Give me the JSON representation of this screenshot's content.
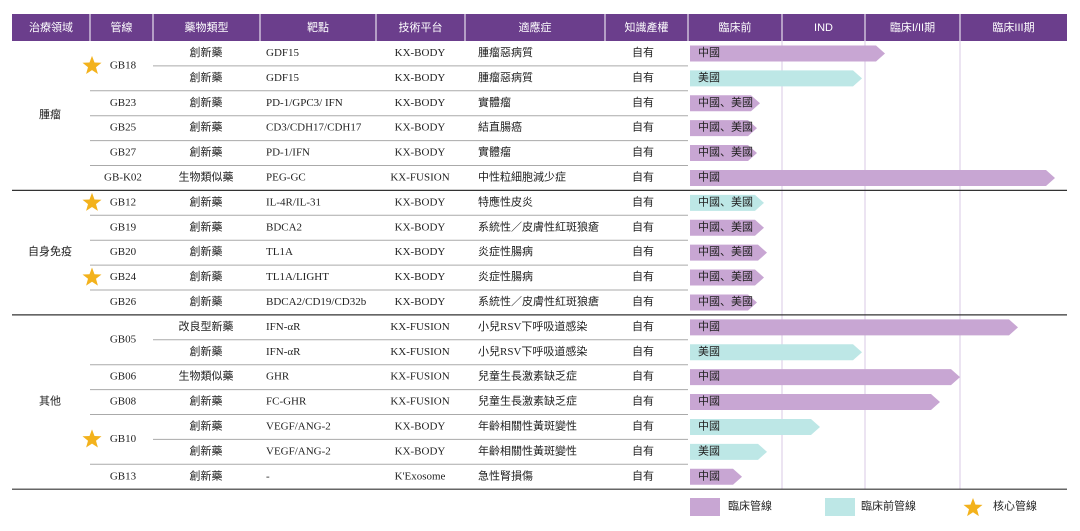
{
  "header": [
    "治療領域",
    "管線",
    "藥物類型",
    "靶點",
    "技術平台",
    "適應症",
    "知識產權",
    "臨床前",
    "IND",
    "臨床I/II期",
    "臨床III期"
  ],
  "groups": [
    {
      "name": "腫瘤",
      "pipelines": [
        {
          "name": "GB18",
          "rows": [
            [
              "創新藥",
              "GDF15",
              "KX-BODY",
              "腫瘤惡病質",
              "自有",
              "中國"
            ],
            [
              "創新藥",
              "GDF15",
              "KX-BODY",
              "腫瘤惡病質",
              "自有",
              "美國"
            ]
          ]
        },
        {
          "name": "GB23",
          "rows": [
            [
              "創新藥",
              "PD-1/GPC3/ IFN",
              "KX-BODY",
              "實體瘤",
              "自有",
              "中國、美國"
            ]
          ]
        },
        {
          "name": "GB25",
          "rows": [
            [
              "創新藥",
              "CD3/CDH17/CDH17",
              "KX-BODY",
              "結直腸癌",
              "自有",
              "中國、美國"
            ]
          ]
        },
        {
          "name": "GB27",
          "rows": [
            [
              "創新藥",
              "PD-1/IFN",
              "KX-BODY",
              "實體瘤",
              "自有",
              "中國、美國"
            ]
          ]
        },
        {
          "name": "GB-K02",
          "rows": [
            [
              "生物類似藥",
              "PEG-GC",
              "KX-FUSION",
              "中性粒細胞減少症",
              "自有",
              "中國"
            ]
          ]
        }
      ]
    },
    {
      "name": "自身免疫",
      "pipelines": [
        {
          "name": "GB12",
          "rows": [
            [
              "創新藥",
              "IL-4R/IL-31",
              "KX-BODY",
              "特應性皮炎",
              "自有",
              "中國、美國"
            ]
          ]
        },
        {
          "name": "GB19",
          "rows": [
            [
              "創新藥",
              "BDCA2",
              "KX-BODY",
              "系統性／皮膚性紅斑狼瘡",
              "自有",
              "中國、美國"
            ]
          ]
        },
        {
          "name": "GB20",
          "rows": [
            [
              "創新藥",
              "TL1A",
              "KX-BODY",
              "炎症性腸病",
              "自有",
              "中國、美國"
            ]
          ]
        },
        {
          "name": "GB24",
          "rows": [
            [
              "創新藥",
              "TL1A/LIGHT",
              "KX-BODY",
              "炎症性腸病",
              "自有",
              "中國、美國"
            ]
          ]
        },
        {
          "name": "GB26",
          "rows": [
            [
              "創新藥",
              "BDCA2/CD19/CD32b",
              "KX-BODY",
              "系統性／皮膚性紅斑狼瘡",
              "自有",
              "中國、美國"
            ]
          ]
        }
      ]
    },
    {
      "name": "其他",
      "pipelines": [
        {
          "name": "GB05",
          "rows": [
            [
              "改良型新藥",
              "IFN-αR",
              "KX-FUSION",
              "小兒RSV下呼吸道感染",
              "自有",
              "中國"
            ],
            [
              "創新藥",
              "IFN-αR",
              "KX-FUSION",
              "小兒RSV下呼吸道感染",
              "自有",
              "美國"
            ]
          ]
        },
        {
          "name": "GB06",
          "rows": [
            [
              "生物類似藥",
              "GHR",
              "KX-FUSION",
              "兒童生長激素缺乏症",
              "自有",
              "中國"
            ]
          ]
        },
        {
          "name": "GB08",
          "rows": [
            [
              "創新藥",
              "FC-GHR",
              "KX-FUSION",
              "兒童生長激素缺乏症",
              "自有",
              "中國"
            ]
          ]
        },
        {
          "name": "GB10",
          "rows": [
            [
              "創新藥",
              "VEGF/ANG-2",
              "KX-BODY",
              "年齡相關性黃斑變性",
              "自有",
              "中國"
            ],
            [
              "創新藥",
              "VEGF/ANG-2",
              "KX-BODY",
              "年齡相關性黃斑變性",
              "自有",
              "美國"
            ]
          ]
        },
        {
          "name": "GB13",
          "rows": [
            [
              "創新藥",
              "-",
              "K'Exosome",
              "急性腎損傷",
              "自有",
              "中國"
            ]
          ]
        }
      ]
    }
  ],
  "legend": [
    "臨床管線",
    "臨床前管線",
    "核心管線"
  ]
}
